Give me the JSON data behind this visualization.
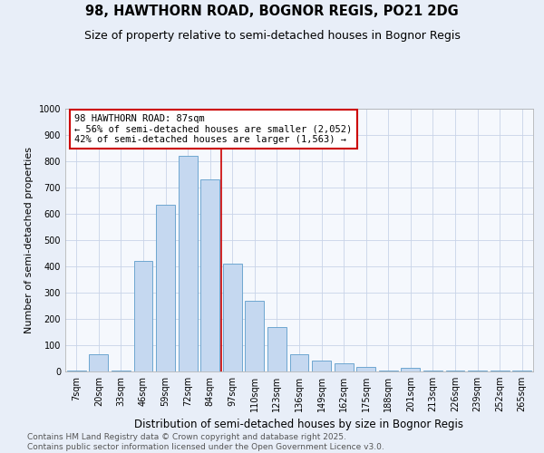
{
  "title1": "98, HAWTHORN ROAD, BOGNOR REGIS, PO21 2DG",
  "title2": "Size of property relative to semi-detached houses in Bognor Regis",
  "xlabel": "Distribution of semi-detached houses by size in Bognor Regis",
  "ylabel": "Number of semi-detached properties",
  "categories": [
    "7sqm",
    "20sqm",
    "33sqm",
    "46sqm",
    "59sqm",
    "72sqm",
    "84sqm",
    "97sqm",
    "110sqm",
    "123sqm",
    "136sqm",
    "149sqm",
    "162sqm",
    "175sqm",
    "188sqm",
    "201sqm",
    "213sqm",
    "226sqm",
    "239sqm",
    "252sqm",
    "265sqm"
  ],
  "values": [
    4,
    65,
    4,
    420,
    635,
    820,
    730,
    410,
    270,
    170,
    65,
    42,
    30,
    18,
    4,
    15,
    5,
    3,
    4,
    2,
    4
  ],
  "bar_color": "#c5d8f0",
  "bar_edge_color": "#6ea6d0",
  "vline_x": 6.5,
  "vline_color": "#cc0000",
  "annotation_title": "98 HAWTHORN ROAD: 87sqm",
  "annotation_line1": "← 56% of semi-detached houses are smaller (2,052)",
  "annotation_line2": "42% of semi-detached houses are larger (1,563) →",
  "annotation_box_color": "white",
  "annotation_box_edge": "#cc0000",
  "footnote1": "Contains HM Land Registry data © Crown copyright and database right 2025.",
  "footnote2": "Contains public sector information licensed under the Open Government Licence v3.0.",
  "bg_color": "#e8eef8",
  "plot_bg_color": "#f5f8fd",
  "ylim": [
    0,
    1000
  ],
  "yticks": [
    0,
    100,
    200,
    300,
    400,
    500,
    600,
    700,
    800,
    900,
    1000
  ],
  "title1_fontsize": 10.5,
  "title2_fontsize": 9,
  "xlabel_fontsize": 8.5,
  "ylabel_fontsize": 8,
  "tick_fontsize": 7,
  "footnote_fontsize": 6.5,
  "annotation_fontsize": 7.5
}
